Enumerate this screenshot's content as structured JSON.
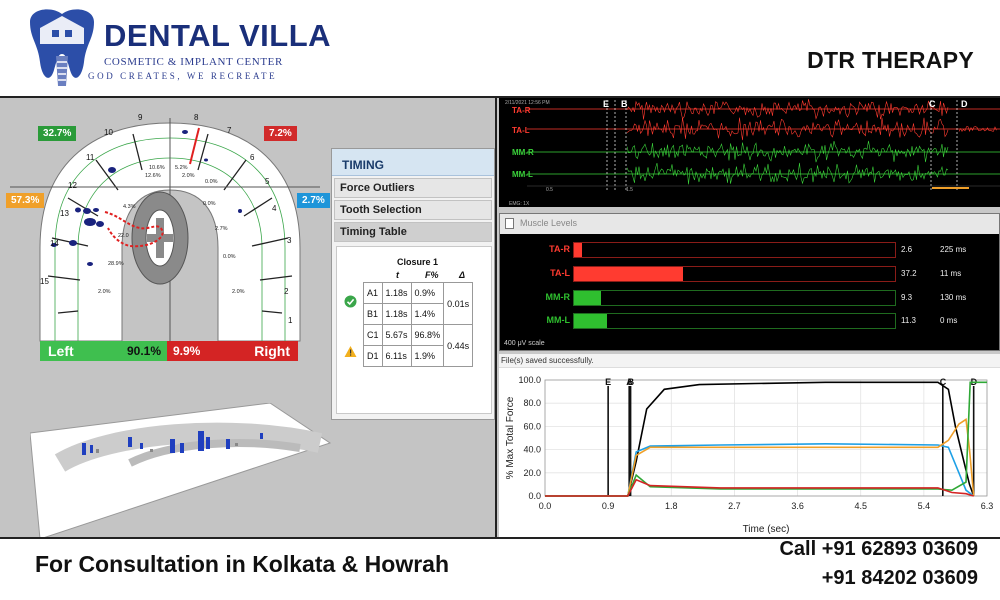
{
  "brand": {
    "name": "DENTAL VILLA",
    "subtitle": "COSMETIC & IMPLANT CENTER",
    "tagline": "GOD CREATES, WE RECREATE"
  },
  "heading": "DTR THERAPY",
  "force_map": {
    "badges": {
      "top_left": "32.7%",
      "top_right": "7.2%",
      "mid_left": "57.3%",
      "mid_right": "2.7%"
    },
    "tooth_numbers": [
      "1",
      "2",
      "3",
      "4",
      "5",
      "6",
      "7",
      "8",
      "9",
      "10",
      "11",
      "12",
      "13",
      "14",
      "15"
    ],
    "inner_values": [
      "10.6%",
      "12.6%",
      "5.2%",
      "2.0%",
      "4.3%",
      "22.0",
      "28.9%",
      "2.7%",
      "0.0%",
      "2.0%",
      "0.0%",
      "2.0%",
      "0.0%"
    ],
    "left": {
      "label": "Left",
      "value": "90.1%"
    },
    "right": {
      "label": "Right",
      "value": "9.9%"
    },
    "colors": {
      "left": "#3fbf4f",
      "right": "#d42424",
      "badge_orange": "#f0a02a",
      "badge_blue": "#1e95d9"
    }
  },
  "timing": {
    "title": "TIMING",
    "tabs": [
      "Force Outliers",
      "Tooth Selection",
      "Timing Table"
    ],
    "closure": "Closure 1",
    "headers": {
      "t": "t",
      "f": "F%",
      "delta": "Δ"
    },
    "rows": [
      {
        "id": "A1",
        "t": "1.18s",
        "f": "0.9%"
      },
      {
        "id": "B1",
        "t": "1.18s",
        "f": "1.4%"
      },
      {
        "id": "C1",
        "t": "5.67s",
        "f": "96.8%"
      },
      {
        "id": "D1",
        "t": "6.11s",
        "f": "1.9%"
      }
    ],
    "deltas": [
      "0.01s",
      "0.44s"
    ],
    "icons": [
      "check-circle-icon",
      "warning-triangle-icon"
    ]
  },
  "emg": {
    "date": "2/11/2021 12:56 PM",
    "channels": [
      {
        "label": "TA-R",
        "color": "#ff3b30"
      },
      {
        "label": "TA-L",
        "color": "#ff3b30"
      },
      {
        "label": "MM-R",
        "color": "#3bd43b"
      },
      {
        "label": "MM-L",
        "color": "#3bd43b"
      }
    ],
    "markers": [
      "E",
      "B",
      "C",
      "D"
    ],
    "ticks": [
      "0.5",
      "1.5"
    ],
    "footer": "EMG: 1X"
  },
  "muscle_levels": {
    "title": "Muscle Levels",
    "scale": "400 μV scale",
    "rows": [
      {
        "label": "TA-R",
        "value": "2.6",
        "time": "225 ms",
        "level": 0.007,
        "color": "#ff3b30"
      },
      {
        "label": "TA-L",
        "value": "37.2",
        "time": "11 ms",
        "level": 0.1,
        "color": "#ff3b30"
      },
      {
        "label": "MM-R",
        "value": "9.3",
        "time": "130 ms",
        "level": 0.025,
        "color": "#2fbf2f"
      },
      {
        "label": "MM-L",
        "value": "11.3",
        "time": "0 ms",
        "level": 0.03,
        "color": "#2fbf2f"
      }
    ]
  },
  "status": "File(s) saved successfully.",
  "chart_data": {
    "type": "line",
    "xlabel": "Time (sec)",
    "ylabel": "% Max Total Force",
    "xlim": [
      0,
      6.3
    ],
    "ylim": [
      0,
      100
    ],
    "x_ticks": [
      "0.0",
      "0.9",
      "1.8",
      "2.7",
      "3.6",
      "4.5",
      "5.4",
      "6.3"
    ],
    "y_ticks": [
      "0.0",
      "20.0",
      "40.0",
      "60.0",
      "80.0",
      "100.0"
    ],
    "markers": [
      {
        "label": "E",
        "x": 0.9
      },
      {
        "label": "A",
        "x": 1.2
      },
      {
        "label": "B",
        "x": 1.22
      },
      {
        "label": "C",
        "x": 5.67
      },
      {
        "label": "D",
        "x": 6.11
      }
    ],
    "series": [
      {
        "color": "#000000",
        "points": [
          [
            0,
            0
          ],
          [
            1.18,
            0
          ],
          [
            1.3,
            30
          ],
          [
            1.45,
            75
          ],
          [
            1.7,
            92
          ],
          [
            2.2,
            96
          ],
          [
            3.0,
            97
          ],
          [
            4.0,
            98
          ],
          [
            5.0,
            98
          ],
          [
            5.6,
            98
          ],
          [
            5.75,
            92
          ],
          [
            5.85,
            60
          ],
          [
            5.95,
            35
          ],
          [
            6.05,
            10
          ],
          [
            6.11,
            0
          ]
        ]
      },
      {
        "color": "#1ea0e6",
        "points": [
          [
            0,
            0
          ],
          [
            1.18,
            0
          ],
          [
            1.3,
            38
          ],
          [
            1.5,
            43
          ],
          [
            2.5,
            44
          ],
          [
            4.0,
            45
          ],
          [
            5.6,
            44
          ],
          [
            5.75,
            42
          ],
          [
            5.9,
            20
          ],
          [
            6.0,
            5
          ],
          [
            6.11,
            0
          ]
        ]
      },
      {
        "color": "#f0a02a",
        "points": [
          [
            0,
            0
          ],
          [
            1.18,
            0
          ],
          [
            1.3,
            35
          ],
          [
            1.5,
            42
          ],
          [
            2.5,
            42
          ],
          [
            4.0,
            42
          ],
          [
            5.6,
            42
          ],
          [
            5.75,
            48
          ],
          [
            5.9,
            62
          ],
          [
            6.0,
            66
          ],
          [
            6.05,
            40
          ],
          [
            6.11,
            0
          ]
        ]
      },
      {
        "color": "#2fa836",
        "points": [
          [
            0,
            0
          ],
          [
            1.18,
            0
          ],
          [
            1.3,
            18
          ],
          [
            1.5,
            8
          ],
          [
            2.5,
            6
          ],
          [
            4.0,
            6
          ],
          [
            5.6,
            6
          ],
          [
            5.8,
            5
          ],
          [
            6.0,
            12
          ],
          [
            6.06,
            98
          ],
          [
            6.3,
            98
          ]
        ]
      },
      {
        "color": "#d42424",
        "points": [
          [
            0,
            0
          ],
          [
            1.18,
            0
          ],
          [
            1.3,
            14
          ],
          [
            1.5,
            9
          ],
          [
            2.5,
            7
          ],
          [
            4.0,
            7
          ],
          [
            5.6,
            7
          ],
          [
            5.8,
            3
          ],
          [
            6.0,
            2
          ],
          [
            6.11,
            0
          ]
        ]
      }
    ]
  },
  "footer": {
    "consult": "For Consultation in Kolkata & Howrah",
    "phone1": "Call +91 62893 03609",
    "phone2": "+91 84202 03609"
  }
}
